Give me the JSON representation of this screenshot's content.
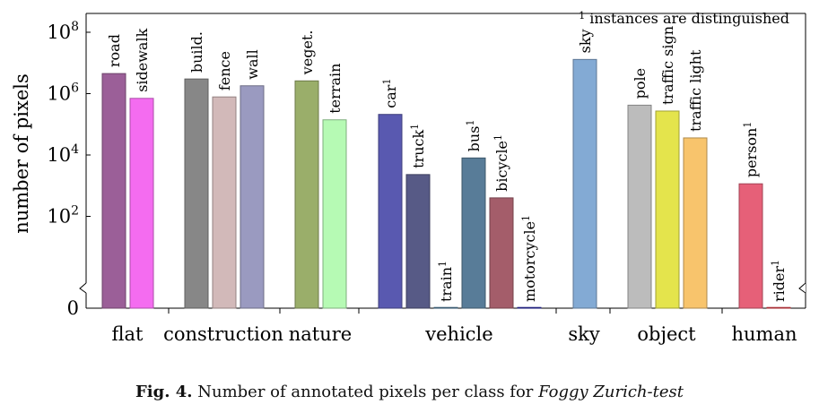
{
  "chart_data": {
    "type": "bar",
    "title": "",
    "ylabel": "number of pixels",
    "y_scale": "log",
    "ylim": [
      1,
      100000000
    ],
    "y_ticks": [
      {
        "label": "0",
        "value": 1
      },
      {
        "label": "10",
        "exp": "2",
        "value": 100
      },
      {
        "label": "10",
        "exp": "4",
        "value": 10000
      },
      {
        "label": "10",
        "exp": "6",
        "value": 1000000
      },
      {
        "label": "10",
        "exp": "8",
        "value": 100000000
      }
    ],
    "note": {
      "marker": "1",
      "text": "instances are distinguished"
    },
    "groups": [
      {
        "name": "flat",
        "bars": [
          {
            "label": "road",
            "sup": "",
            "value": 4500000,
            "color": "#9b5f98"
          },
          {
            "label": "sidewalk",
            "sup": "",
            "value": 700000,
            "color": "#f46cf0"
          }
        ]
      },
      {
        "name": "construction",
        "bars": [
          {
            "label": "build.",
            "sup": "",
            "value": 3000000,
            "color": "#878787"
          },
          {
            "label": "fence",
            "sup": "",
            "value": 780000,
            "color": "#d2b9b9"
          },
          {
            "label": "wall",
            "sup": "",
            "value": 1800000,
            "color": "#9a9ac0"
          }
        ]
      },
      {
        "name": "nature",
        "bars": [
          {
            "label": "veget.",
            "sup": "",
            "value": 2600000,
            "color": "#9aae6a"
          },
          {
            "label": "terrain",
            "sup": "",
            "value": 140000,
            "color": "#b6fab4"
          }
        ]
      },
      {
        "name": "vehicle",
        "bars": [
          {
            "label": "car",
            "sup": "1",
            "value": 210000,
            "color": "#5959b0"
          },
          {
            "label": "truck",
            "sup": "1",
            "value": 2300,
            "color": "#575a86"
          },
          {
            "label": "train",
            "sup": "1",
            "value": 1,
            "color": "#4f7fa0"
          },
          {
            "label": "bus",
            "sup": "1",
            "value": 8000,
            "color": "#587c98"
          },
          {
            "label": "bicycle",
            "sup": "1",
            "value": 400,
            "color": "#a45d6a"
          },
          {
            "label": "motorcycle",
            "sup": "1",
            "value": 1,
            "color": "#2a2ab0"
          }
        ]
      },
      {
        "name": "sky",
        "bars": [
          {
            "label": "sky",
            "sup": "",
            "value": 13000000,
            "color": "#83aad4"
          }
        ]
      },
      {
        "name": "object",
        "bars": [
          {
            "label": "pole",
            "sup": "",
            "value": 420000,
            "color": "#bcbcbc"
          },
          {
            "label": "traffic sign",
            "sup": "",
            "value": 270000,
            "color": "#e4e44c"
          },
          {
            "label": "traffic light",
            "sup": "",
            "value": 36000,
            "color": "#f8c46c"
          }
        ]
      },
      {
        "name": "human",
        "bars": [
          {
            "label": "person",
            "sup": "1",
            "value": 1150,
            "color": "#e66078"
          },
          {
            "label": "rider",
            "sup": "1",
            "value": 1,
            "color": "#f0404a"
          }
        ]
      }
    ]
  },
  "caption": {
    "label": "Fig. 4.",
    "text": "Number of annotated pixels per class for",
    "italic": "Foggy Zurich-test"
  }
}
